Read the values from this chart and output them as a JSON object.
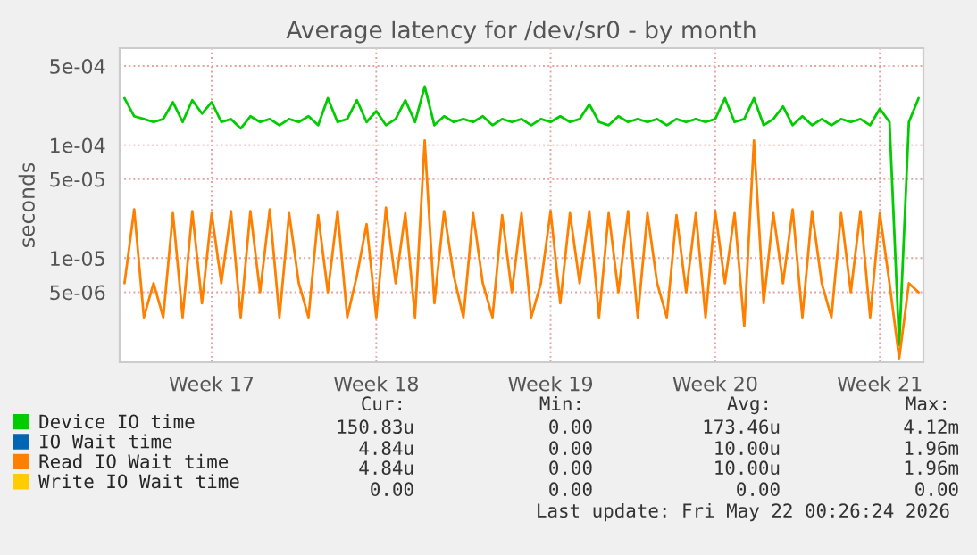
{
  "chart_data": {
    "type": "line",
    "title": "Average latency for /dev/sr0 - by month",
    "ylabel": "seconds",
    "log": "y",
    "grid": true,
    "legend": "bottom",
    "categories": [
      null,
      null,
      null,
      null,
      null,
      null,
      null,
      null,
      null,
      "Week 17",
      null,
      null,
      null,
      null,
      null,
      null,
      null,
      null,
      null,
      null,
      null,
      null,
      null,
      null,
      null,
      null,
      "Week 18",
      null,
      null,
      null,
      null,
      null,
      null,
      null,
      null,
      null,
      null,
      null,
      null,
      null,
      null,
      null,
      null,
      null,
      "Week 19",
      null,
      null,
      null,
      null,
      null,
      null,
      null,
      null,
      null,
      null,
      null,
      null,
      null,
      null,
      null,
      null,
      "Week 20",
      null,
      null,
      null,
      null,
      null,
      null,
      null,
      null,
      null,
      null,
      null,
      null,
      null,
      null,
      null,
      null,
      "Week 21",
      null,
      null,
      null,
      null
    ],
    "ylim": [
      1.2e-06,
      0.00072
    ],
    "yticks": [
      {
        "value": 0.0005,
        "label": "5e-04"
      },
      {
        "value": 0.0001,
        "label": "1e-04"
      },
      {
        "value": 5e-05,
        "label": "5e-05"
      },
      {
        "value": 1e-05,
        "label": "1e-05"
      },
      {
        "value": 5e-06,
        "label": "5e-06"
      }
    ],
    "series": [
      {
        "name": "Device IO time",
        "color": "#00cc00",
        "values": [
          0.00026,
          0.00018,
          0.00017,
          0.00016,
          0.00017,
          0.00024,
          0.00016,
          0.00025,
          0.00019,
          0.00024,
          0.00016,
          0.00017,
          0.00014,
          0.00018,
          0.00016,
          0.00017,
          0.00015,
          0.00017,
          0.00016,
          0.00018,
          0.00015,
          0.00026,
          0.00016,
          0.00017,
          0.00025,
          0.00016,
          0.0002,
          0.00015,
          0.00017,
          0.00025,
          0.00016,
          0.00033,
          0.00015,
          0.00018,
          0.00016,
          0.00017,
          0.00016,
          0.00018,
          0.00015,
          0.00017,
          0.00016,
          0.00017,
          0.00015,
          0.00017,
          0.00016,
          0.00018,
          0.00016,
          0.00017,
          0.00023,
          0.00016,
          0.00015,
          0.00018,
          0.00016,
          0.00017,
          0.00016,
          0.00017,
          0.00015,
          0.00017,
          0.00016,
          0.00017,
          0.00016,
          0.00017,
          0.00026,
          0.00016,
          0.00017,
          0.00026,
          0.00015,
          0.00017,
          0.00022,
          0.00015,
          0.00018,
          0.00015,
          0.00017,
          0.00015,
          0.00017,
          0.00016,
          0.00017,
          0.00015,
          0.00021,
          0.00016,
          1.7e-06,
          0.00016,
          0.00026
        ]
      },
      {
        "name": "IO Wait time",
        "color": "#0066b3",
        "values": [
          null,
          null,
          null,
          null,
          null,
          null,
          null,
          null,
          null,
          null,
          null,
          null,
          null,
          null,
          null,
          null,
          null,
          null,
          null,
          null,
          null,
          null,
          null,
          null,
          null,
          null,
          null,
          null,
          null,
          null,
          null,
          null,
          null,
          null,
          null,
          null,
          null,
          null,
          null,
          null,
          null,
          null,
          null,
          null,
          null,
          null,
          null,
          null,
          null,
          null,
          null,
          null,
          null,
          null,
          null,
          null,
          null,
          null,
          null,
          null,
          null,
          null,
          null,
          null,
          null,
          null,
          null,
          null,
          null,
          null,
          null,
          null,
          null,
          null,
          null,
          null,
          null,
          null,
          null,
          null,
          null,
          null,
          null
        ]
      },
      {
        "name": "Read IO Wait time",
        "color": "#ff8000",
        "values": [
          6e-06,
          2.7e-05,
          3e-06,
          6e-06,
          3e-06,
          2.5e-05,
          3e-06,
          2.6e-05,
          4e-06,
          2.5e-05,
          6e-06,
          2.6e-05,
          3e-06,
          2.6e-05,
          5e-06,
          2.7e-05,
          3e-06,
          2.5e-05,
          6e-06,
          3e-06,
          2.4e-05,
          5e-06,
          2.6e-05,
          3e-06,
          7e-06,
          2e-05,
          3e-06,
          2.8e-05,
          6e-06,
          2.5e-05,
          3e-06,
          0.00011,
          4e-06,
          2.6e-05,
          7e-06,
          3e-06,
          2.5e-05,
          6e-06,
          3e-06,
          2.4e-05,
          5e-06,
          2.5e-05,
          3e-06,
          6e-06,
          2.6e-05,
          4e-06,
          2.5e-05,
          6e-06,
          2.6e-05,
          3e-06,
          2.5e-05,
          5e-06,
          2.6e-05,
          3e-06,
          2.5e-05,
          6e-06,
          3e-06,
          2.4e-05,
          5e-06,
          2.5e-05,
          3e-06,
          2.6e-05,
          6e-06,
          2.5e-05,
          2.5e-06,
          0.00011,
          4e-06,
          2.5e-05,
          6e-06,
          2.7e-05,
          3e-06,
          2.6e-05,
          6e-06,
          3e-06,
          2.5e-05,
          5e-06,
          2.6e-05,
          3e-06,
          2.5e-05,
          6e-06,
          1.3e-06,
          6e-06,
          5e-06
        ]
      },
      {
        "name": "Write IO Wait time",
        "color": "#ffcc00",
        "values": [
          null,
          null,
          null,
          null,
          null,
          null,
          null,
          null,
          null,
          null,
          null,
          null,
          null,
          null,
          null,
          null,
          null,
          null,
          null,
          null,
          null,
          null,
          null,
          null,
          null,
          null,
          null,
          null,
          null,
          null,
          null,
          null,
          null,
          null,
          null,
          null,
          null,
          null,
          null,
          null,
          null,
          null,
          null,
          null,
          null,
          null,
          null,
          null,
          null,
          null,
          null,
          null,
          null,
          null,
          null,
          null,
          null,
          null,
          null,
          null,
          null,
          null,
          null,
          null,
          null,
          null,
          null,
          null,
          null,
          null,
          null,
          null,
          null,
          null,
          null,
          null,
          null,
          null,
          null,
          null,
          null,
          null,
          null
        ]
      }
    ],
    "annotations": [
      "Cur:",
      "Min:",
      "Avg:",
      "Max:",
      "150.83u",
      "0.00",
      "173.46u",
      "4.12m",
      "4.84u",
      "0.00",
      "10.00u",
      "1.96m",
      "4.84u",
      "0.00",
      "10.00u",
      "1.96m",
      "0.00",
      "0.00",
      "0.00",
      "0.00",
      "Last update: Fri May 22 00:26:24 2026"
    ]
  }
}
